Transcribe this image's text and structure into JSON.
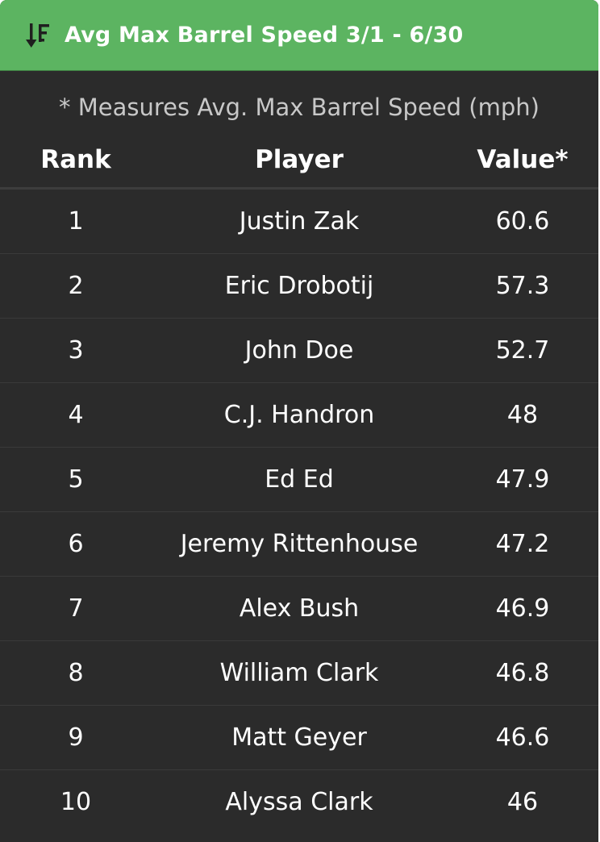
{
  "header": {
    "title": "Avg Max Barrel Speed 3/1 - 6/30",
    "icon": "sort-descending-icon",
    "background_color": "#5cb461"
  },
  "note": "* Measures Avg. Max Barrel Speed (mph)",
  "columns": {
    "rank": "Rank",
    "player": "Player",
    "value": "Value*"
  },
  "rows": [
    {
      "rank": "1",
      "player": "Justin Zak",
      "value": "60.6"
    },
    {
      "rank": "2",
      "player": "Eric Drobotij",
      "value": "57.3"
    },
    {
      "rank": "3",
      "player": "John Doe",
      "value": "52.7"
    },
    {
      "rank": "4",
      "player": "C.J. Handron",
      "value": "48"
    },
    {
      "rank": "5",
      "player": "Ed Ed",
      "value": "47.9"
    },
    {
      "rank": "6",
      "player": "Jeremy Rittenhouse",
      "value": "47.2"
    },
    {
      "rank": "7",
      "player": "Alex Bush",
      "value": "46.9"
    },
    {
      "rank": "8",
      "player": "William Clark",
      "value": "46.8"
    },
    {
      "rank": "9",
      "player": "Matt Geyer",
      "value": "46.6"
    },
    {
      "rank": "10",
      "player": "Alyssa Clark",
      "value": "46"
    }
  ]
}
